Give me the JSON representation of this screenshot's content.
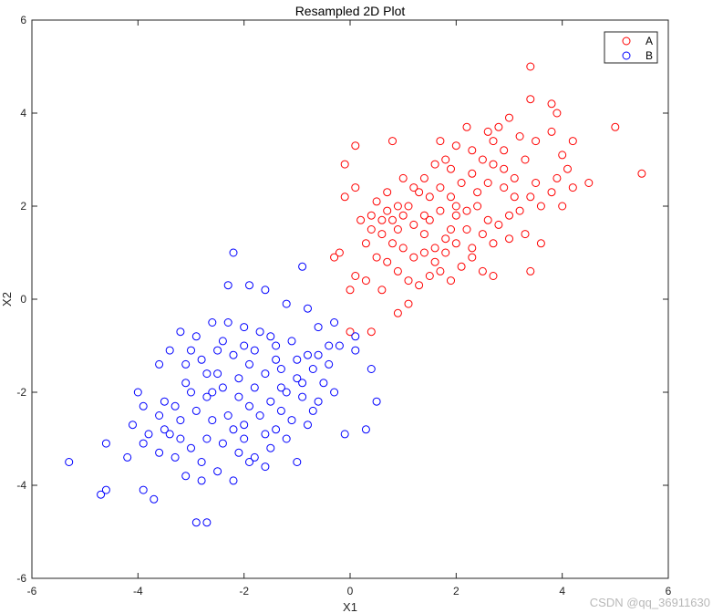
{
  "watermark": "CSDN @qq_36911630",
  "chart_data": {
    "type": "scatter",
    "title": "Resampled 2D Plot",
    "xlabel": "X1",
    "ylabel": "X2",
    "xlim": [
      -6,
      6
    ],
    "ylim": [
      -6,
      6
    ],
    "xticks": [
      -6,
      -4,
      -2,
      0,
      2,
      4,
      6
    ],
    "yticks": [
      -6,
      -4,
      -2,
      0,
      2,
      4,
      6
    ],
    "grid": false,
    "legend_position": "top-right",
    "series": [
      {
        "name": "A",
        "color": "#ff0000",
        "marker": "circle-open",
        "points": [
          [
            3.4,
            5.0
          ],
          [
            3.4,
            4.3
          ],
          [
            3.8,
            4.2
          ],
          [
            3.9,
            4.0
          ],
          [
            5.0,
            3.7
          ],
          [
            3.2,
            3.5
          ],
          [
            3.5,
            3.4
          ],
          [
            4.2,
            3.4
          ],
          [
            3.8,
            3.6
          ],
          [
            3.0,
            3.9
          ],
          [
            2.8,
            3.7
          ],
          [
            2.6,
            3.6
          ],
          [
            2.2,
            3.7
          ],
          [
            2.0,
            3.3
          ],
          [
            1.7,
            3.4
          ],
          [
            0.1,
            3.3
          ],
          [
            -0.1,
            2.9
          ],
          [
            0.8,
            3.4
          ],
          [
            5.5,
            2.7
          ],
          [
            4.5,
            2.5
          ],
          [
            4.2,
            2.4
          ],
          [
            4.1,
            2.8
          ],
          [
            3.9,
            2.6
          ],
          [
            3.5,
            2.5
          ],
          [
            3.1,
            2.6
          ],
          [
            2.9,
            2.8
          ],
          [
            2.7,
            2.9
          ],
          [
            2.5,
            3.0
          ],
          [
            2.3,
            2.7
          ],
          [
            2.1,
            2.5
          ],
          [
            1.9,
            2.8
          ],
          [
            1.8,
            3.0
          ],
          [
            1.6,
            2.9
          ],
          [
            1.4,
            2.6
          ],
          [
            1.3,
            2.3
          ],
          [
            1.1,
            2.0
          ],
          [
            1.0,
            1.8
          ],
          [
            0.8,
            1.7
          ],
          [
            0.6,
            1.7
          ],
          [
            0.4,
            1.8
          ],
          [
            0.2,
            1.7
          ],
          [
            0.1,
            2.4
          ],
          [
            -0.1,
            2.2
          ],
          [
            0.5,
            2.1
          ],
          [
            0.7,
            2.3
          ],
          [
            0.9,
            2.0
          ],
          [
            1.2,
            1.6
          ],
          [
            1.4,
            1.4
          ],
          [
            1.5,
            1.7
          ],
          [
            1.7,
            1.9
          ],
          [
            1.9,
            1.5
          ],
          [
            2.0,
            1.8
          ],
          [
            2.2,
            1.9
          ],
          [
            2.4,
            2.0
          ],
          [
            2.6,
            1.7
          ],
          [
            2.8,
            1.6
          ],
          [
            3.0,
            1.8
          ],
          [
            3.2,
            1.9
          ],
          [
            3.4,
            2.2
          ],
          [
            3.6,
            2.0
          ],
          [
            3.8,
            2.3
          ],
          [
            4.0,
            2.0
          ],
          [
            3.3,
            1.4
          ],
          [
            3.0,
            1.3
          ],
          [
            2.7,
            1.2
          ],
          [
            2.5,
            1.4
          ],
          [
            2.3,
            1.1
          ],
          [
            2.0,
            1.2
          ],
          [
            1.8,
            1.0
          ],
          [
            1.6,
            0.8
          ],
          [
            1.4,
            1.0
          ],
          [
            1.2,
            0.9
          ],
          [
            1.0,
            1.1
          ],
          [
            0.8,
            1.2
          ],
          [
            0.6,
            1.4
          ],
          [
            0.4,
            1.5
          ],
          [
            0.3,
            1.2
          ],
          [
            0.5,
            0.9
          ],
          [
            0.7,
            0.8
          ],
          [
            0.9,
            0.6
          ],
          [
            1.1,
            0.4
          ],
          [
            1.3,
            0.3
          ],
          [
            1.5,
            0.5
          ],
          [
            1.7,
            0.6
          ],
          [
            1.9,
            0.4
          ],
          [
            2.1,
            0.7
          ],
          [
            2.3,
            0.9
          ],
          [
            2.5,
            0.6
          ],
          [
            2.7,
            0.5
          ],
          [
            3.4,
            0.6
          ],
          [
            3.6,
            1.2
          ],
          [
            0.9,
            -0.3
          ],
          [
            0.6,
            0.2
          ],
          [
            0.3,
            0.4
          ],
          [
            0.1,
            0.5
          ],
          [
            0.0,
            0.2
          ],
          [
            -0.3,
            0.9
          ],
          [
            -0.2,
            1.0
          ],
          [
            0.0,
            -0.7
          ],
          [
            0.4,
            -0.7
          ],
          [
            1.1,
            -0.1
          ],
          [
            2.9,
            3.2
          ],
          [
            2.4,
            2.3
          ],
          [
            1.9,
            2.2
          ],
          [
            1.5,
            2.2
          ],
          [
            1.2,
            2.4
          ],
          [
            1.0,
            2.6
          ],
          [
            2.6,
            2.5
          ],
          [
            3.1,
            2.2
          ],
          [
            1.8,
            1.3
          ],
          [
            2.2,
            1.5
          ],
          [
            1.6,
            1.1
          ],
          [
            0.9,
            1.5
          ],
          [
            2.9,
            2.4
          ],
          [
            2.0,
            2.0
          ],
          [
            1.7,
            2.4
          ],
          [
            2.3,
            3.2
          ],
          [
            2.7,
            3.4
          ],
          [
            1.4,
            1.8
          ],
          [
            0.7,
            1.9
          ],
          [
            3.3,
            3.0
          ],
          [
            4.0,
            3.1
          ]
        ]
      },
      {
        "name": "B",
        "color": "#0000ff",
        "marker": "circle-open",
        "points": [
          [
            -2.2,
            1.0
          ],
          [
            -0.9,
            0.7
          ],
          [
            -2.3,
            0.3
          ],
          [
            -1.9,
            0.3
          ],
          [
            -1.6,
            0.2
          ],
          [
            -1.2,
            -0.1
          ],
          [
            -0.8,
            -0.2
          ],
          [
            -0.6,
            -0.6
          ],
          [
            -0.3,
            -0.5
          ],
          [
            0.1,
            -0.8
          ],
          [
            -0.4,
            -1.0
          ],
          [
            -0.8,
            -1.2
          ],
          [
            -1.1,
            -0.9
          ],
          [
            -1.4,
            -1.0
          ],
          [
            -1.7,
            -0.7
          ],
          [
            -2.0,
            -0.6
          ],
          [
            -2.3,
            -0.5
          ],
          [
            -2.6,
            -0.5
          ],
          [
            -2.9,
            -0.8
          ],
          [
            -3.2,
            -0.7
          ],
          [
            -3.4,
            -1.1
          ],
          [
            -3.1,
            -1.4
          ],
          [
            -2.8,
            -1.3
          ],
          [
            -2.5,
            -1.1
          ],
          [
            -2.2,
            -1.2
          ],
          [
            -1.9,
            -1.4
          ],
          [
            -1.6,
            -1.6
          ],
          [
            -1.3,
            -1.5
          ],
          [
            -1.0,
            -1.7
          ],
          [
            -0.7,
            -1.5
          ],
          [
            -0.5,
            -1.8
          ],
          [
            -0.3,
            -2.0
          ],
          [
            0.4,
            -1.5
          ],
          [
            0.5,
            -2.2
          ],
          [
            0.3,
            -2.8
          ],
          [
            -0.1,
            -2.9
          ],
          [
            -0.6,
            -2.2
          ],
          [
            -0.9,
            -2.1
          ],
          [
            -1.2,
            -2.0
          ],
          [
            -1.5,
            -2.2
          ],
          [
            -1.8,
            -1.9
          ],
          [
            -2.1,
            -2.1
          ],
          [
            -2.4,
            -1.9
          ],
          [
            -2.7,
            -2.1
          ],
          [
            -3.0,
            -2.0
          ],
          [
            -3.3,
            -2.3
          ],
          [
            -3.6,
            -2.5
          ],
          [
            -3.9,
            -2.3
          ],
          [
            -4.1,
            -2.7
          ],
          [
            -3.8,
            -2.9
          ],
          [
            -3.5,
            -2.8
          ],
          [
            -3.2,
            -2.6
          ],
          [
            -2.9,
            -2.4
          ],
          [
            -2.6,
            -2.6
          ],
          [
            -2.3,
            -2.5
          ],
          [
            -2.0,
            -2.7
          ],
          [
            -1.7,
            -2.5
          ],
          [
            -1.4,
            -2.8
          ],
          [
            -1.1,
            -2.6
          ],
          [
            -0.8,
            -2.7
          ],
          [
            -1.2,
            -3.0
          ],
          [
            -1.5,
            -3.2
          ],
          [
            -1.8,
            -3.4
          ],
          [
            -2.1,
            -3.3
          ],
          [
            -2.4,
            -3.1
          ],
          [
            -2.7,
            -3.0
          ],
          [
            -3.0,
            -3.2
          ],
          [
            -3.3,
            -3.4
          ],
          [
            -3.6,
            -3.3
          ],
          [
            -3.9,
            -3.1
          ],
          [
            -4.2,
            -3.4
          ],
          [
            -4.6,
            -3.1
          ],
          [
            -5.3,
            -3.5
          ],
          [
            -4.7,
            -4.2
          ],
          [
            -4.6,
            -4.1
          ],
          [
            -3.9,
            -4.1
          ],
          [
            -3.7,
            -4.3
          ],
          [
            -3.1,
            -3.8
          ],
          [
            -2.8,
            -3.9
          ],
          [
            -2.5,
            -3.7
          ],
          [
            -2.2,
            -3.9
          ],
          [
            -1.9,
            -3.5
          ],
          [
            -1.6,
            -3.6
          ],
          [
            -1.0,
            -3.5
          ],
          [
            -2.9,
            -4.8
          ],
          [
            -2.7,
            -4.8
          ],
          [
            -3.5,
            -2.2
          ],
          [
            -2.5,
            -1.6
          ],
          [
            -2.0,
            -1.0
          ],
          [
            -1.5,
            -0.8
          ],
          [
            -1.0,
            -1.3
          ],
          [
            -0.6,
            -1.2
          ],
          [
            -1.3,
            -1.9
          ],
          [
            -1.9,
            -2.3
          ],
          [
            -2.6,
            -2.0
          ],
          [
            -3.1,
            -1.8
          ],
          [
            -2.2,
            -2.8
          ],
          [
            -1.6,
            -2.9
          ],
          [
            -2.8,
            -3.5
          ],
          [
            -3.4,
            -2.9
          ],
          [
            -0.2,
            -1.0
          ],
          [
            0.1,
            -1.1
          ],
          [
            -0.4,
            -1.4
          ],
          [
            -1.8,
            -1.1
          ],
          [
            -2.4,
            -0.9
          ],
          [
            -3.0,
            -1.1
          ],
          [
            -1.4,
            -1.3
          ],
          [
            -0.9,
            -1.8
          ],
          [
            -2.1,
            -1.7
          ],
          [
            -2.7,
            -1.6
          ],
          [
            -3.6,
            -1.4
          ],
          [
            -4.0,
            -2.0
          ],
          [
            -3.2,
            -3.0
          ],
          [
            -2.0,
            -3.0
          ],
          [
            -1.3,
            -2.4
          ],
          [
            -0.7,
            -2.4
          ]
        ]
      }
    ]
  }
}
